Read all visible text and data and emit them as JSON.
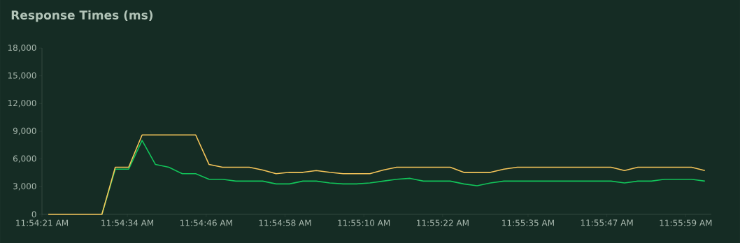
{
  "chart_data": {
    "type": "line",
    "title": "Response Times (ms)",
    "x": [
      11.9061,
      11.906667,
      11.907233,
      11.9078,
      11.908367,
      11.908933,
      11.9095,
      11.910067,
      11.910633,
      11.9112,
      11.911767,
      11.912333,
      11.9129,
      11.913467,
      11.914033,
      11.9146,
      11.915167,
      11.915733,
      11.9163,
      11.916867,
      11.917433,
      11.918,
      11.918567,
      11.919133,
      11.9197,
      11.920267,
      11.920833,
      11.9214,
      11.921967,
      11.922533,
      11.9231,
      11.923667,
      11.924233,
      11.9248,
      11.925367,
      11.925933,
      11.9265,
      11.927067,
      11.927633,
      11.9282,
      11.928767,
      11.929333,
      11.9299,
      11.930467,
      11.931033,
      11.9316,
      11.932167,
      11.932733,
      11.9333,
      11.933867
    ],
    "series": [
      {
        "color": "#f5c55a",
        "values": [
          0,
          0,
          0,
          0,
          0,
          5100,
          5100,
          8600,
          8600,
          8600,
          8600,
          8600,
          5400,
          5100,
          5100,
          5100,
          4800,
          4400,
          4550,
          4550,
          4750,
          4550,
          4400,
          4400,
          4400,
          4800,
          5100,
          5100,
          5100,
          5100,
          5100,
          4550,
          4550,
          4550,
          4900,
          5100,
          5100,
          5100,
          5100,
          5100,
          5100,
          5100,
          5100,
          4750,
          5100,
          5100,
          5100,
          5100,
          5100,
          4750
        ]
      },
      {
        "color": "#12c45a",
        "values": [
          null,
          null,
          null,
          null,
          0,
          4900,
          4900,
          8000,
          5400,
          5100,
          4400,
          4400,
          3800,
          3800,
          3600,
          3600,
          3600,
          3300,
          3300,
          3600,
          3600,
          3400,
          3300,
          3300,
          3400,
          3600,
          3800,
          3900,
          3600,
          3600,
          3600,
          3300,
          3100,
          3400,
          3600,
          3600,
          3600,
          3600,
          3600,
          3600,
          3600,
          3600,
          3600,
          3400,
          3600,
          3600,
          3800,
          3800,
          3800,
          3600
        ]
      }
    ],
    "xlim": [
      11.905833,
      11.934139
    ],
    "xticks": [
      {
        "value": 11.905833,
        "label": "11:54:21 AM"
      },
      {
        "value": 11.909444,
        "label": "11:54:34 AM"
      },
      {
        "value": 11.912778,
        "label": "11:54:46 AM"
      },
      {
        "value": 11.916111,
        "label": "11:54:58 AM"
      },
      {
        "value": 11.919444,
        "label": "11:55:10 AM"
      },
      {
        "value": 11.922778,
        "label": "11:55:22 AM"
      },
      {
        "value": 11.926389,
        "label": "11:55:35 AM"
      },
      {
        "value": 11.929722,
        "label": "11:55:47 AM"
      },
      {
        "value": 11.933056,
        "label": "11:55:59 AM"
      }
    ],
    "ylim": [
      0,
      18000
    ],
    "yticks": [
      {
        "value": 0,
        "label": "0"
      },
      {
        "value": 3000,
        "label": "3,000"
      },
      {
        "value": 6000,
        "label": "6,000"
      },
      {
        "value": 9000,
        "label": "9,000"
      },
      {
        "value": 12000,
        "label": "12,000"
      },
      {
        "value": 15000,
        "label": "15,000"
      },
      {
        "value": 18000,
        "label": "18,000"
      }
    ],
    "grid": false,
    "line_style": "solid"
  }
}
